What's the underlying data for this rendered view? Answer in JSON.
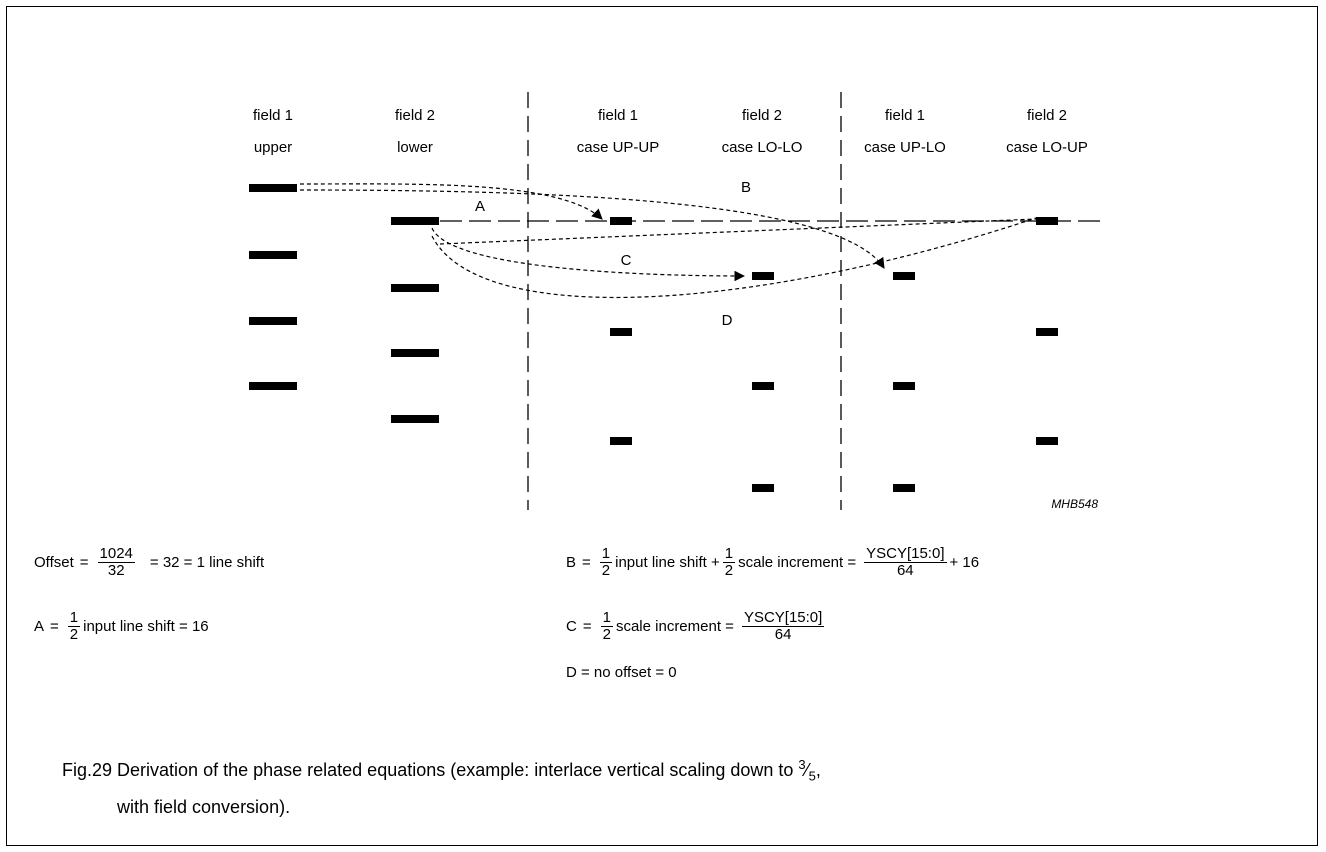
{
  "columns": [
    {
      "title": "field 1",
      "subtitle": "upper"
    },
    {
      "title": "field 2",
      "subtitle": "lower"
    },
    {
      "title": "field 1",
      "subtitle": "case UP-UP"
    },
    {
      "title": "field 2",
      "subtitle": "case LO-LO"
    },
    {
      "title": "field 1",
      "subtitle": "case UP-LO"
    },
    {
      "title": "field 2",
      "subtitle": "case LO-UP"
    }
  ],
  "arrow_labels": {
    "A": "A",
    "B": "B",
    "C": "C",
    "D": "D"
  },
  "figure_code": "MHB548",
  "equations": {
    "offset": {
      "lhs": "Offset",
      "eq": "=",
      "num": "1024",
      "den": "32",
      "rhs": "= 32 = 1 line shift"
    },
    "a": {
      "lhs": "A",
      "eq": "=",
      "num": "1",
      "den": "2",
      "rhs": "input line shift = 16"
    },
    "b": {
      "lhs": "B",
      "eq": "=",
      "num1": "1",
      "den1": "2",
      "mid": "input line shift +",
      "num2": "1",
      "den2": "2",
      "mid2": "scale increment =",
      "num3": "YSCY[15:0]",
      "den3": "64",
      "rhs": "+ 16"
    },
    "c": {
      "lhs": "C",
      "eq": "=",
      "num": "1",
      "den": "2",
      "mid": "scale increment =",
      "num2": "YSCY[15:0]",
      "den2": "64"
    },
    "d": {
      "text": "D = no offset = 0"
    }
  },
  "caption": {
    "line1_pre": "Fig.29  Derivation of the phase related equations (example: interlace vertical scaling down to ",
    "frac_num": "3",
    "frac_slash": "⁄",
    "frac_den": "5",
    "line1_post": ",",
    "line2": "with field conversion)."
  }
}
